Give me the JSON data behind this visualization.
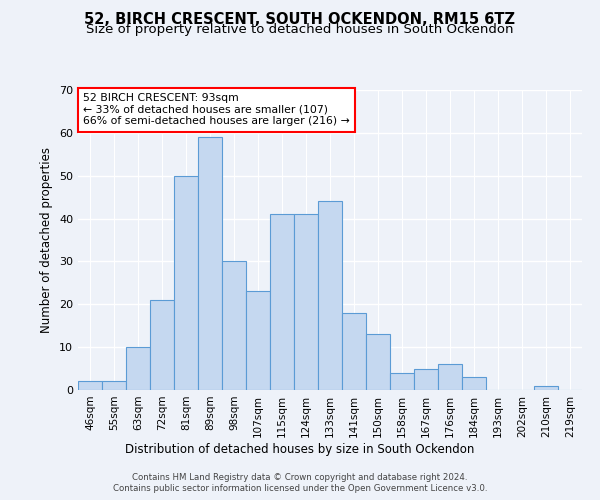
{
  "title": "52, BIRCH CRESCENT, SOUTH OCKENDON, RM15 6TZ",
  "subtitle": "Size of property relative to detached houses in South Ockendon",
  "xlabel": "Distribution of detached houses by size in South Ockendon",
  "ylabel": "Number of detached properties",
  "categories": [
    "46sqm",
    "55sqm",
    "63sqm",
    "72sqm",
    "81sqm",
    "89sqm",
    "98sqm",
    "107sqm",
    "115sqm",
    "124sqm",
    "133sqm",
    "141sqm",
    "150sqm",
    "158sqm",
    "167sqm",
    "176sqm",
    "184sqm",
    "193sqm",
    "202sqm",
    "210sqm",
    "219sqm"
  ],
  "values": [
    2,
    2,
    10,
    21,
    50,
    59,
    30,
    23,
    41,
    41,
    44,
    18,
    13,
    4,
    5,
    6,
    3,
    0,
    0,
    1,
    0
  ],
  "bar_color": "#c5d8f0",
  "bar_edge_color": "#5b9bd5",
  "ylim": [
    0,
    70
  ],
  "yticks": [
    0,
    10,
    20,
    30,
    40,
    50,
    60,
    70
  ],
  "annotation_title": "52 BIRCH CRESCENT: 93sqm",
  "annotation_line1": "← 33% of detached houses are smaller (107)",
  "annotation_line2": "66% of semi-detached houses are larger (216) →",
  "footer1": "Contains HM Land Registry data © Crown copyright and database right 2024.",
  "footer2": "Contains public sector information licensed under the Open Government Licence v3.0.",
  "bg_color": "#eef2f9",
  "grid_color": "#ffffff",
  "title_fontsize": 10.5,
  "subtitle_fontsize": 9.5,
  "axis_label_fontsize": 8.5,
  "tick_fontsize": 7.5
}
